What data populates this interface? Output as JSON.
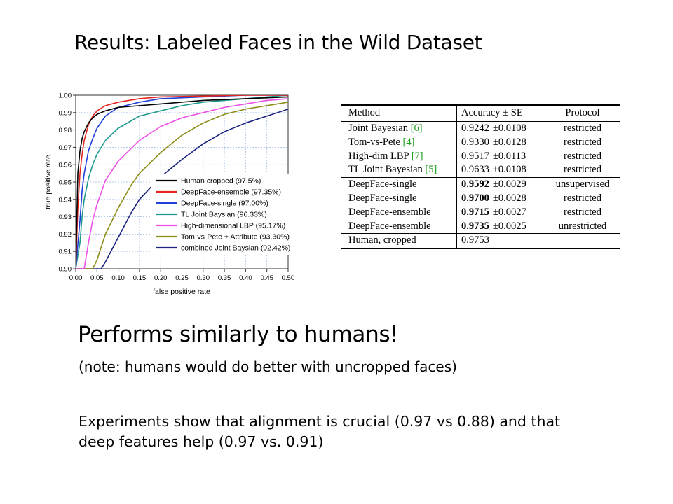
{
  "slide": {
    "title": "Results: Labeled Faces in the Wild Dataset",
    "headline": "Performs similarly to humans!",
    "note": "(note: humans would do better with uncropped faces)",
    "experiments": "Experiments show that alignment is crucial (0.97 vs 0.88) and that deep features help (0.97 vs. 0.91)"
  },
  "chart_data": {
    "type": "line",
    "xlabel": "false positive rate",
    "ylabel": "true positive rate",
    "xlim": [
      0,
      0.5
    ],
    "ylim": [
      0.9,
      1.0
    ],
    "x_ticks": [
      "0.00",
      "0.05",
      "0.10",
      "0.15",
      "0.20",
      "0.25",
      "0.30",
      "0.35",
      "0.40",
      "0.45",
      "0.50"
    ],
    "y_ticks": [
      "0.90",
      "0.91",
      "0.92",
      "0.93",
      "0.94",
      "0.95",
      "0.96",
      "0.97",
      "0.98",
      "0.99",
      "1.00"
    ],
    "grid": true,
    "legend_position": "bottom-right",
    "series": [
      {
        "name": "Human cropped (97.5%)",
        "color": "#000000",
        "x": [
          0.0,
          0.005,
          0.01,
          0.015,
          0.02,
          0.03,
          0.04,
          0.05,
          0.07,
          0.1,
          0.15,
          0.2,
          0.3,
          0.4,
          0.5
        ],
        "y": [
          0.9,
          0.955,
          0.968,
          0.975,
          0.979,
          0.984,
          0.987,
          0.989,
          0.991,
          0.993,
          0.994,
          0.995,
          0.997,
          0.998,
          0.999
        ]
      },
      {
        "name": "DeepFace-ensemble (97.35%)",
        "color": "#e8251f",
        "x": [
          0.0,
          0.005,
          0.01,
          0.015,
          0.02,
          0.03,
          0.04,
          0.05,
          0.07,
          0.1,
          0.15,
          0.2,
          0.3,
          0.4,
          0.5
        ],
        "y": [
          0.9,
          0.935,
          0.955,
          0.966,
          0.974,
          0.983,
          0.988,
          0.991,
          0.994,
          0.996,
          0.998,
          0.999,
          0.9995,
          1.0,
          1.0
        ]
      },
      {
        "name": "DeepFace-single (97.00%)",
        "color": "#1f3fd6",
        "x": [
          0.0,
          0.01,
          0.015,
          0.02,
          0.03,
          0.04,
          0.05,
          0.07,
          0.1,
          0.15,
          0.2,
          0.3,
          0.4,
          0.5
        ],
        "y": [
          0.9,
          0.928,
          0.945,
          0.955,
          0.968,
          0.975,
          0.981,
          0.988,
          0.993,
          0.996,
          0.998,
          0.999,
          1.0,
          1.0
        ]
      },
      {
        "name": "TL Joint Baysian (96.33%)",
        "color": "#1e9a8c",
        "x": [
          0.0,
          0.01,
          0.015,
          0.02,
          0.03,
          0.04,
          0.05,
          0.07,
          0.1,
          0.15,
          0.2,
          0.25,
          0.3,
          0.4,
          0.5
        ],
        "y": [
          0.9,
          0.915,
          0.93,
          0.94,
          0.952,
          0.96,
          0.966,
          0.974,
          0.981,
          0.988,
          0.991,
          0.994,
          0.996,
          0.998,
          1.0
        ]
      },
      {
        "name": "High-dimensional LBP (95.17%)",
        "color": "#ee4fe6",
        "x": [
          0.0,
          0.02,
          0.03,
          0.04,
          0.05,
          0.07,
          0.1,
          0.15,
          0.2,
          0.25,
          0.3,
          0.35,
          0.4,
          0.45,
          0.5
        ],
        "y": [
          0.9,
          0.9,
          0.915,
          0.928,
          0.937,
          0.951,
          0.962,
          0.974,
          0.982,
          0.987,
          0.99,
          0.993,
          0.995,
          0.997,
          0.998
        ]
      },
      {
        "name": "Tom-vs-Pete + Attribute (93.30%)",
        "color": "#8c8c16",
        "x": [
          0.0,
          0.03,
          0.04,
          0.05,
          0.07,
          0.1,
          0.13,
          0.15,
          0.2,
          0.25,
          0.3,
          0.35,
          0.4,
          0.45,
          0.5
        ],
        "y": [
          0.9,
          0.9,
          0.9,
          0.905,
          0.92,
          0.935,
          0.948,
          0.955,
          0.967,
          0.977,
          0.984,
          0.989,
          0.992,
          0.994,
          0.996
        ]
      },
      {
        "name": "combined Joint Baysian (92.42%)",
        "color": "#1a237e",
        "x": [
          0.0,
          0.06,
          0.07,
          0.1,
          0.13,
          0.15,
          0.2,
          0.25,
          0.3,
          0.35,
          0.4,
          0.45,
          0.5
        ],
        "y": [
          0.9,
          0.9,
          0.904,
          0.918,
          0.932,
          0.94,
          0.953,
          0.963,
          0.972,
          0.979,
          0.984,
          0.988,
          0.992
        ]
      }
    ]
  },
  "table": {
    "headers": [
      "Method",
      "Accuracy ± SE",
      "Protocol"
    ],
    "rows": [
      {
        "method": "Joint Bayesian ",
        "ref": "[6]",
        "acc": "0.9242",
        "se": "±0.0108",
        "protocol": "restricted",
        "bold": false,
        "group_start": false
      },
      {
        "method": "Tom-vs-Pete ",
        "ref": "[4]",
        "acc": "0.9330",
        "se": "±0.0128",
        "protocol": "restricted",
        "bold": false,
        "group_start": false
      },
      {
        "method": "High-dim LBP ",
        "ref": "[7]",
        "acc": "0.9517",
        "se": "±0.0113",
        "protocol": "restricted",
        "bold": false,
        "group_start": false
      },
      {
        "method": "TL Joint Bayesian ",
        "ref": "[5]",
        "acc": "0.9633",
        "se": "±0.0108",
        "protocol": "restricted",
        "bold": false,
        "group_start": false
      },
      {
        "method": "DeepFace-single",
        "ref": "",
        "acc": "0.9592",
        "se": "±0.0029",
        "protocol": "unsupervised",
        "bold": true,
        "group_start": true
      },
      {
        "method": "DeepFace-single",
        "ref": "",
        "acc": "0.9700",
        "se": "±0.0028",
        "protocol": "restricted",
        "bold": true,
        "group_start": false
      },
      {
        "method": "DeepFace-ensemble",
        "ref": "",
        "acc": "0.9715",
        "se": "±0.0027",
        "protocol": "restricted",
        "bold": true,
        "group_start": false
      },
      {
        "method": "DeepFace-ensemble",
        "ref": "",
        "acc": "0.9735",
        "se": "±0.0025",
        "protocol": "unrestricted",
        "bold": true,
        "group_start": false
      },
      {
        "method": "Human, cropped",
        "ref": "",
        "acc": "0.9753",
        "se": "",
        "protocol": "",
        "bold": false,
        "group_start": true
      }
    ]
  }
}
